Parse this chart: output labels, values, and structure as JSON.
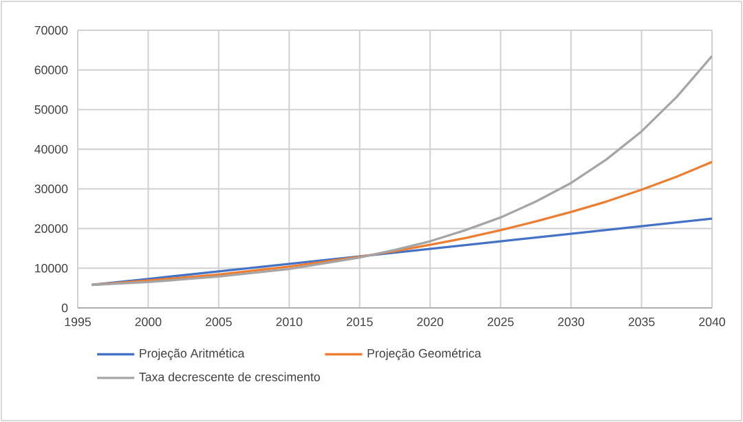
{
  "chart_data": {
    "type": "line",
    "x": [
      1996,
      2000,
      2005,
      2010,
      2015,
      2020,
      2025,
      2030,
      2035,
      2040
    ],
    "series": [
      {
        "name": "Projeção Aritmética",
        "color": "#4472c4",
        "values": [
          5800,
          7300,
          9200,
          11100,
          13000,
          14900,
          16800,
          18700,
          20600,
          22500
        ]
      },
      {
        "name": "Projeção Geométrica",
        "color": "#ed7d31",
        "x": [
          1996,
          2000,
          2005,
          2010,
          2015,
          2017.5,
          2020,
          2022.5,
          2025,
          2027.5,
          2030,
          2032.5,
          2035,
          2037.5,
          2040
        ],
        "values": [
          5800,
          6900,
          8400,
          10400,
          12900,
          14300,
          15900,
          17600,
          19600,
          21800,
          24200,
          26800,
          29800,
          33100,
          36800
        ]
      },
      {
        "name": "Taxa decrescente de crescimento",
        "color": "#a5a5a5",
        "x": [
          1996,
          2000,
          2005,
          2010,
          2015,
          2017.5,
          2020,
          2022.5,
          2025,
          2027.5,
          2030,
          2032.5,
          2035,
          2037.5,
          2040
        ],
        "values": [
          5800,
          6500,
          7900,
          9800,
          12700,
          14600,
          16800,
          19600,
          22800,
          26800,
          31500,
          37400,
          44500,
          53200,
          63500
        ]
      }
    ],
    "xlim": [
      1995,
      2040
    ],
    "ylim": [
      0,
      70000
    ],
    "xticks": [
      1995,
      2000,
      2005,
      2010,
      2015,
      2020,
      2025,
      2030,
      2035,
      2040
    ],
    "yticks": [
      0,
      10000,
      20000,
      30000,
      40000,
      50000,
      60000,
      70000
    ],
    "grid": true,
    "legend": "bottom"
  }
}
